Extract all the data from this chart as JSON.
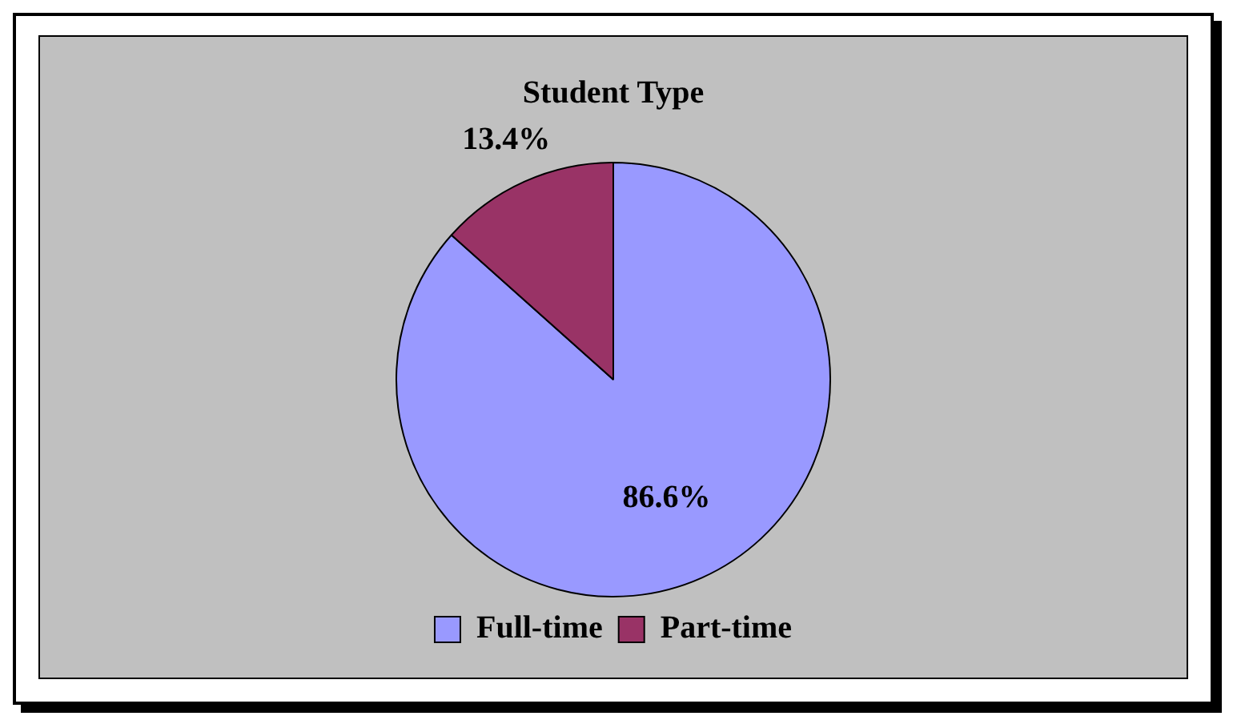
{
  "chart_data": {
    "type": "pie",
    "title": "Student Type",
    "categories": [
      "Full-time",
      "Part-time"
    ],
    "values": [
      86.6,
      13.4
    ],
    "colors": [
      "#9999ff",
      "#993366"
    ],
    "value_labels": [
      "86.6%",
      "13.4%"
    ],
    "legend": "bottom"
  }
}
